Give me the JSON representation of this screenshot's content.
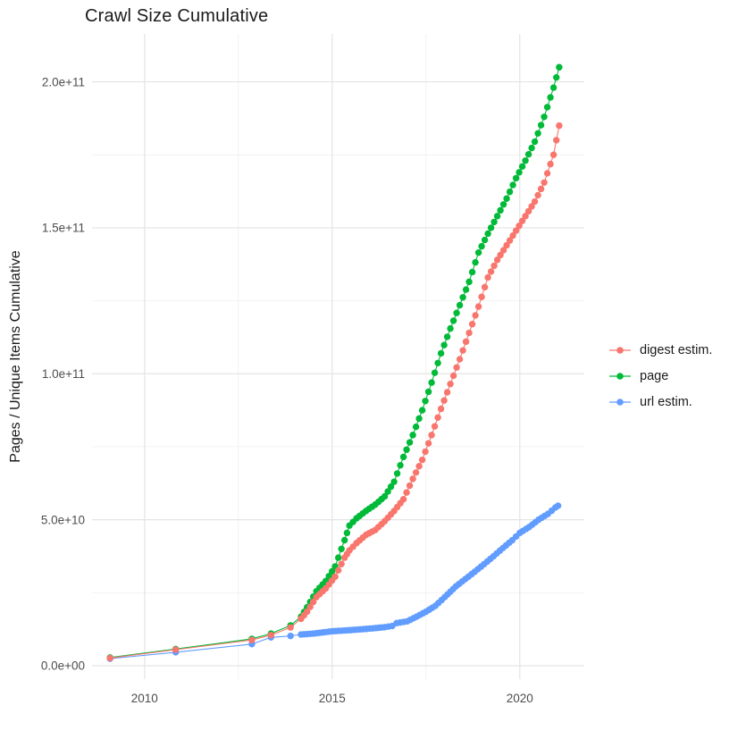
{
  "page": {
    "title": "Crawl Size Cumulative"
  },
  "chart_data": {
    "type": "line",
    "title": "Crawl Size Cumulative",
    "xlabel": "",
    "ylabel": "Pages / Unique Items Cumulative",
    "grid": true,
    "legend_position": "right",
    "xlim": [
      2008.6,
      2021.72
    ],
    "ylim": [
      -4600000000.0,
      216400000000.0
    ],
    "x_ticks": [
      {
        "value": 2010,
        "label": "2010"
      },
      {
        "value": 2015,
        "label": "2015"
      },
      {
        "value": 2020,
        "label": "2020"
      }
    ],
    "x_minor": [
      2012.5,
      2017.5
    ],
    "y_ticks": [
      {
        "value": 0,
        "label": "0.0e+00"
      },
      {
        "value": 50000000000.0,
        "label": "5.0e+10"
      },
      {
        "value": 100000000000.0,
        "label": "1.0e+11"
      },
      {
        "value": 150000000000.0,
        "label": "1.5e+11"
      },
      {
        "value": 200000000000.0,
        "label": "2.0e+11"
      }
    ],
    "y_minor": [
      25000000000.0,
      75000000000.0,
      125000000000.0,
      175000000000.0
    ],
    "marker_interval_years": 0.0833,
    "marker_start_year": 2014.0,
    "draw_order": [
      1,
      2,
      0
    ],
    "series": [
      {
        "name": "digest estim.",
        "color": "#F8766D",
        "points": [
          [
            2009.08,
            2600000000.0
          ],
          [
            2010.83,
            5500000000.0
          ],
          [
            2012.86,
            8800000000.0
          ],
          [
            2013.37,
            10500000000.0
          ],
          [
            2013.89,
            13100000000.0
          ],
          [
            2014.17,
            16100000000.0
          ],
          [
            2014.33,
            18500000000.0
          ],
          [
            2014.58,
            23500000000.0
          ],
          [
            2014.83,
            26500000000.0
          ],
          [
            2015.08,
            30500000000.0
          ],
          [
            2015.33,
            37000000000.0
          ],
          [
            2015.46,
            39500000000.0
          ],
          [
            2015.65,
            42000000000.0
          ],
          [
            2015.9,
            44800000000.0
          ],
          [
            2016.15,
            46500000000.0
          ],
          [
            2016.4,
            49500000000.0
          ],
          [
            2016.65,
            53000000000.0
          ],
          [
            2016.9,
            57000000000.0
          ],
          [
            2017.15,
            64000000000.0
          ],
          [
            2017.4,
            70500000000.0
          ],
          [
            2017.65,
            79000000000.0
          ],
          [
            2017.9,
            88000000000.0
          ],
          [
            2018.15,
            96500000000.0
          ],
          [
            2018.4,
            105000000000.0
          ],
          [
            2018.65,
            114000000000.0
          ],
          [
            2018.9,
            123000000000.0
          ],
          [
            2019.15,
            133000000000.0
          ],
          [
            2019.4,
            139000000000.0
          ],
          [
            2019.65,
            144000000000.0
          ],
          [
            2019.9,
            149000000000.0
          ],
          [
            2020.15,
            154000000000.0
          ],
          [
            2020.4,
            159000000000.0
          ],
          [
            2020.65,
            165500000000.0
          ],
          [
            2020.9,
            175000000000.0
          ],
          [
            2021.05,
            185000000000.0
          ]
        ]
      },
      {
        "name": "page",
        "color": "#00BA38",
        "points": [
          [
            2009.08,
            2800000000.0
          ],
          [
            2010.83,
            5700000000.0
          ],
          [
            2012.86,
            9200000000.0
          ],
          [
            2013.37,
            11000000000.0
          ],
          [
            2013.89,
            13800000000.0
          ],
          [
            2014.17,
            16800000000.0
          ],
          [
            2014.33,
            20000000000.0
          ],
          [
            2014.58,
            25500000000.0
          ],
          [
            2014.83,
            29000000000.0
          ],
          [
            2015.08,
            34000000000.0
          ],
          [
            2015.33,
            43000000000.0
          ],
          [
            2015.46,
            48000000000.0
          ],
          [
            2015.65,
            50500000000.0
          ],
          [
            2015.9,
            53000000000.0
          ],
          [
            2016.15,
            55200000000.0
          ],
          [
            2016.4,
            58000000000.0
          ],
          [
            2016.65,
            63000000000.0
          ],
          [
            2016.9,
            71500000000.0
          ],
          [
            2017.15,
            79000000000.0
          ],
          [
            2017.4,
            87500000000.0
          ],
          [
            2017.65,
            97000000000.0
          ],
          [
            2017.9,
            107000000000.0
          ],
          [
            2018.15,
            115500000000.0
          ],
          [
            2018.4,
            123500000000.0
          ],
          [
            2018.65,
            131500000000.0
          ],
          [
            2018.9,
            141500000000.0
          ],
          [
            2019.15,
            148000000000.0
          ],
          [
            2019.4,
            154000000000.0
          ],
          [
            2019.65,
            160000000000.0
          ],
          [
            2019.9,
            167000000000.0
          ],
          [
            2020.15,
            173000000000.0
          ],
          [
            2020.4,
            179500000000.0
          ],
          [
            2020.65,
            188000000000.0
          ],
          [
            2020.9,
            198000000000.0
          ],
          [
            2021.05,
            205000000000.0
          ]
        ]
      },
      {
        "name": "url estim.",
        "color": "#619CFF",
        "points": [
          [
            2009.08,
            2400000000.0
          ],
          [
            2010.83,
            4600000000.0
          ],
          [
            2012.86,
            7400000000.0
          ],
          [
            2013.37,
            9700000000.0
          ],
          [
            2013.89,
            10200000000.0
          ],
          [
            2014.17,
            10700000000.0
          ],
          [
            2014.5,
            11000000000.0
          ],
          [
            2015.0,
            11800000000.0
          ],
          [
            2015.5,
            12200000000.0
          ],
          [
            2016.0,
            12700000000.0
          ],
          [
            2016.4,
            13200000000.0
          ],
          [
            2016.6,
            13600000000.0
          ],
          [
            2016.72,
            14600000000.0
          ],
          [
            2017.0,
            15200000000.0
          ],
          [
            2017.25,
            16800000000.0
          ],
          [
            2017.5,
            18500000000.0
          ],
          [
            2017.75,
            20500000000.0
          ],
          [
            2018.0,
            23500000000.0
          ],
          [
            2018.3,
            27200000000.0
          ],
          [
            2018.55,
            29700000000.0
          ],
          [
            2018.8,
            32200000000.0
          ],
          [
            2019.05,
            34800000000.0
          ],
          [
            2019.3,
            37500000000.0
          ],
          [
            2019.55,
            40300000000.0
          ],
          [
            2019.8,
            43000000000.0
          ],
          [
            2020.0,
            45500000000.0
          ],
          [
            2020.25,
            47500000000.0
          ],
          [
            2020.5,
            50000000000.0
          ],
          [
            2020.75,
            52000000000.0
          ],
          [
            2020.95,
            54200000000.0
          ],
          [
            2021.02,
            54800000000.0
          ]
        ]
      }
    ]
  }
}
